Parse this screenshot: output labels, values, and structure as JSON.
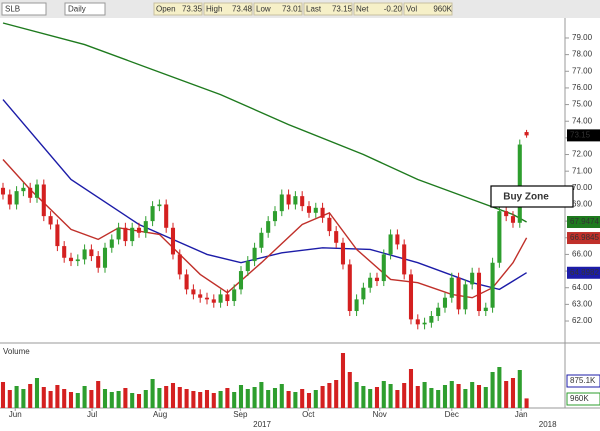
{
  "chart_data": {
    "type": "candlestick",
    "toolbar": {
      "symbol": "SLB",
      "interval": "Daily",
      "fields": [
        {
          "name": "Open",
          "value": "73.35"
        },
        {
          "name": "High",
          "value": "73.48"
        },
        {
          "name": "Low",
          "value": "73.01"
        },
        {
          "name": "Last",
          "value": "73.15"
        },
        {
          "name": "Net",
          "value": "-0.20"
        },
        {
          "name": "Vol",
          "value": "960K"
        }
      ]
    },
    "annotation": "Buy Zone",
    "x": [
      0,
      1,
      2,
      3,
      4,
      5,
      6,
      7,
      8,
      9,
      10,
      11,
      12,
      13,
      14,
      15,
      16,
      17,
      18,
      19,
      20,
      21,
      22,
      23,
      24,
      25,
      26,
      27,
      28,
      29,
      30,
      31,
      32,
      33,
      34,
      35,
      36,
      37,
      38,
      39,
      40,
      41,
      42,
      43,
      44,
      45,
      46,
      47,
      48,
      49,
      50,
      51,
      52,
      53,
      54,
      55,
      56,
      57,
      58,
      59,
      60,
      61,
      62,
      63,
      64,
      65,
      66,
      67,
      68,
      69,
      70,
      71,
      72,
      73,
      74,
      75,
      76,
      77
    ],
    "open": [
      70.0,
      69.6,
      69.0,
      69.8,
      70.0,
      69.4,
      70.2,
      68.3,
      67.8,
      66.5,
      65.8,
      65.6,
      65.7,
      66.3,
      65.9,
      65.2,
      66.4,
      66.9,
      67.6,
      66.8,
      67.6,
      67.3,
      68.0,
      68.9,
      69.0,
      67.6,
      66.0,
      64.8,
      63.9,
      63.6,
      63.4,
      63.3,
      63.1,
      63.6,
      63.2,
      63.9,
      65.0,
      65.6,
      66.4,
      67.3,
      68.0,
      68.6,
      69.6,
      69.0,
      69.5,
      68.9,
      68.5,
      68.8,
      68.2,
      67.4,
      66.7,
      65.4,
      62.6,
      63.3,
      64.0,
      64.6,
      64.4,
      66.0,
      67.2,
      66.6,
      64.8,
      62.1,
      61.8,
      61.9,
      62.3,
      62.8,
      63.4,
      64.6,
      62.7,
      64.2,
      64.9,
      62.6,
      62.8,
      65.5,
      68.6,
      68.3,
      67.9,
      73.35
    ],
    "high": [
      70.3,
      69.9,
      70.1,
      70.3,
      70.3,
      70.5,
      70.5,
      68.6,
      68.1,
      66.8,
      66.1,
      66.0,
      66.6,
      66.6,
      66.2,
      66.7,
      67.2,
      67.9,
      67.9,
      67.9,
      67.9,
      68.3,
      69.2,
      69.3,
      69.3,
      67.9,
      66.3,
      65.1,
      64.2,
      63.9,
      63.7,
      63.6,
      63.9,
      63.9,
      64.2,
      65.3,
      65.9,
      66.7,
      67.6,
      68.3,
      68.9,
      69.9,
      69.9,
      69.8,
      69.8,
      69.2,
      69.1,
      69.1,
      68.5,
      67.7,
      67.0,
      65.7,
      63.6,
      64.3,
      64.9,
      64.9,
      66.3,
      67.5,
      67.5,
      66.9,
      65.1,
      62.4,
      62.2,
      62.6,
      63.1,
      63.7,
      64.9,
      64.9,
      64.5,
      65.2,
      65.2,
      63.1,
      65.8,
      68.9,
      68.9,
      68.6,
      72.9,
      73.48
    ],
    "low": [
      69.3,
      68.7,
      68.7,
      69.5,
      69.1,
      69.1,
      68.0,
      67.5,
      66.2,
      65.5,
      65.3,
      65.3,
      65.4,
      65.6,
      64.9,
      64.9,
      66.1,
      66.6,
      66.5,
      66.5,
      67.0,
      67.0,
      67.7,
      68.6,
      67.3,
      65.7,
      64.5,
      63.6,
      63.3,
      63.1,
      63.0,
      62.8,
      62.8,
      62.9,
      62.9,
      63.6,
      64.7,
      65.3,
      66.1,
      67.0,
      67.7,
      68.3,
      68.7,
      68.7,
      68.6,
      68.2,
      68.2,
      67.9,
      67.1,
      66.4,
      65.1,
      62.3,
      62.3,
      63.0,
      63.7,
      64.1,
      64.1,
      65.7,
      66.3,
      64.5,
      61.8,
      61.5,
      61.5,
      61.6,
      62.0,
      62.5,
      63.1,
      62.4,
      62.4,
      63.9,
      62.3,
      62.3,
      62.5,
      65.2,
      68.0,
      67.6,
      67.6,
      73.01
    ],
    "close": [
      69.6,
      69.0,
      69.8,
      70.0,
      69.4,
      70.2,
      68.3,
      67.8,
      66.5,
      65.8,
      65.6,
      65.7,
      66.3,
      65.9,
      65.2,
      66.4,
      66.9,
      67.6,
      66.8,
      67.6,
      67.3,
      68.0,
      68.9,
      69.0,
      67.6,
      66.0,
      64.8,
      63.9,
      63.6,
      63.4,
      63.3,
      63.1,
      63.6,
      63.2,
      63.9,
      65.0,
      65.6,
      66.4,
      67.3,
      68.0,
      68.6,
      69.6,
      69.0,
      69.5,
      68.9,
      68.5,
      68.8,
      68.2,
      67.4,
      66.7,
      65.4,
      62.6,
      63.3,
      64.0,
      64.6,
      64.4,
      66.0,
      67.2,
      66.6,
      64.8,
      62.1,
      61.8,
      61.9,
      62.3,
      62.8,
      63.4,
      64.6,
      62.7,
      64.2,
      64.9,
      62.6,
      62.8,
      65.5,
      68.6,
      68.3,
      67.9,
      72.6,
      73.15
    ],
    "volume": [
      2600,
      1800,
      2200,
      1900,
      2400,
      3000,
      2100,
      1700,
      2300,
      1900,
      1600,
      1500,
      2200,
      1800,
      2700,
      1900,
      1600,
      1700,
      2000,
      1500,
      1400,
      1800,
      2900,
      2000,
      2200,
      2500,
      2100,
      1900,
      1700,
      1600,
      1800,
      1500,
      1700,
      2000,
      1600,
      2300,
      1900,
      2100,
      2600,
      1800,
      2000,
      2400,
      1700,
      1600,
      1900,
      1500,
      1800,
      2200,
      2500,
      2800,
      5500,
      3600,
      2600,
      2200,
      1900,
      2100,
      2700,
      2400,
      1800,
      2500,
      3900,
      2200,
      2600,
      2000,
      1800,
      2300,
      2700,
      2400,
      1900,
      2600,
      2300,
      2100,
      3600,
      4100,
      2700,
      3000,
      3800,
      960
    ],
    "volume_lim": [
      0,
      6000
    ],
    "volume_title": "Volume",
    "volume_labels": [
      "875.1K",
      "960K"
    ],
    "up_color": "#2e9e2e",
    "down_color": "#d42020",
    "moving_averages": [
      {
        "color": "#1e7a1e",
        "x": [
          0,
          12,
          22,
          32,
          42,
          53,
          61,
          69,
          75,
          77
        ],
        "values": [
          79.9,
          78.6,
          77.1,
          75.6,
          73.8,
          72.0,
          70.5,
          69.3,
          68.4,
          67.95
        ]
      },
      {
        "color": "#1c1ca8",
        "x": [
          0,
          10,
          20,
          30,
          35,
          41,
          47,
          54,
          61,
          69,
          73,
          77
        ],
        "values": [
          75.3,
          70.5,
          67.8,
          66.0,
          65.5,
          66.1,
          66.4,
          66.3,
          65.5,
          64.3,
          63.9,
          64.9
        ]
      },
      {
        "color": "#c0302a",
        "x": [
          0,
          4,
          10,
          14,
          17,
          23,
          29,
          33,
          38,
          44,
          48,
          52,
          57,
          61,
          66,
          69,
          72,
          75,
          77
        ],
        "values": [
          71.7,
          69.9,
          67.5,
          66.9,
          67.6,
          67.2,
          64.8,
          63.7,
          65.5,
          67.8,
          68.5,
          66.3,
          64.5,
          64.3,
          63.6,
          63.4,
          64.0,
          65.5,
          67.0
        ]
      }
    ],
    "price_labels": [
      73.15,
      67.9474,
      66.9845,
      64.8982
    ],
    "price_label_colors": [
      "#000000",
      "#1e7a1e",
      "#c0302a",
      "#1c1ca8"
    ],
    "xlim": [
      -0.44,
      82.65
    ],
    "ylim": [
      60.86,
      80.08
    ],
    "yticks": [
      {
        "value": 62,
        "label": "62.00"
      },
      {
        "value": 63,
        "label": "63.00"
      },
      {
        "value": 64,
        "label": "64.00"
      },
      {
        "value": 65,
        "label": "65.00"
      },
      {
        "value": 66,
        "label": "66.00"
      },
      {
        "value": 67,
        "label": "67.00"
      },
      {
        "value": 68,
        "label": "68.00"
      },
      {
        "value": 69,
        "label": "69.00"
      },
      {
        "value": 70,
        "label": "70.00"
      },
      {
        "value": 71,
        "label": "71.00"
      },
      {
        "value": 72,
        "label": "72.00"
      },
      {
        "value": 73,
        "label": "73.00"
      },
      {
        "value": 74,
        "label": "74.00"
      },
      {
        "value": 75,
        "label": "75.00"
      },
      {
        "value": 76,
        "label": "76.00"
      },
      {
        "value": 77,
        "label": "77.00"
      },
      {
        "value": 78,
        "label": "78.00"
      },
      {
        "value": 79,
        "label": "79.00"
      }
    ],
    "xticks": [
      {
        "value": 1.8,
        "label": "Jun"
      },
      {
        "value": 13.1,
        "label": "Jul"
      },
      {
        "value": 23.1,
        "label": "Aug"
      },
      {
        "value": 34.9,
        "label": "Sep"
      },
      {
        "value": 44.9,
        "label": "Oct"
      },
      {
        "value": 55.4,
        "label": "Nov"
      },
      {
        "value": 66,
        "label": "Dec"
      },
      {
        "value": 76.2,
        "label": "Jan"
      }
    ],
    "year_labels": [
      {
        "value": 38.1,
        "label": "2017"
      },
      {
        "value": 80.1,
        "label": "2018"
      }
    ]
  }
}
